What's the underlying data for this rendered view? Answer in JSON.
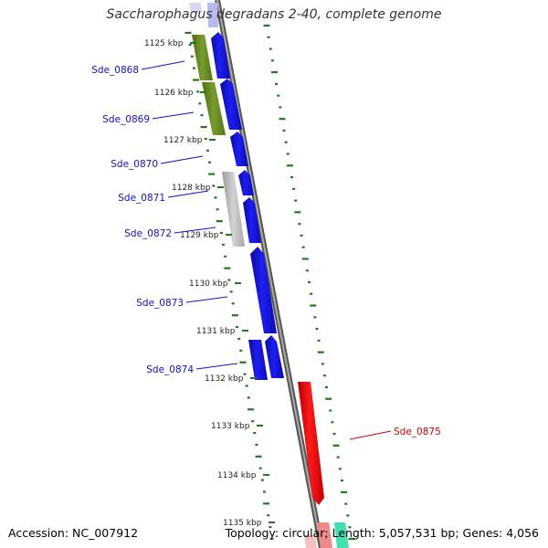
{
  "title": "Saccharophagus degradans 2-40, complete genome",
  "footer": {
    "accession": "Accession: NC_007912",
    "summary": "Topology: circular; Length: 5,057,531 bp; Genes: 4,056"
  },
  "ruler": {
    "labels": [
      "1125 kbp",
      "1126 kbp",
      "1127 kbp",
      "1128 kbp",
      "1129 kbp",
      "1130 kbp",
      "1131 kbp",
      "1132 kbp",
      "1133 kbp",
      "1134 kbp",
      "1135 kbp"
    ]
  },
  "colors": {
    "backbone": "#888888",
    "forward_cds": "#1414e6",
    "reverse_cds": "#ee1111",
    "label_blue": "#1010c8",
    "label_red": "#cc0000",
    "olive_gene": "#6b8e23",
    "gray_gene": "#b8b8b8",
    "tick_green": "#1f7a1f"
  },
  "genes": [
    {
      "label": "Sde_0868",
      "strand": "+",
      "color_key": "label_blue"
    },
    {
      "label": "Sde_0869",
      "strand": "+",
      "color_key": "label_blue"
    },
    {
      "label": "Sde_0870",
      "strand": "+",
      "color_key": "label_blue"
    },
    {
      "label": "Sde_0871",
      "strand": "+",
      "color_key": "label_blue"
    },
    {
      "label": "Sde_0872",
      "strand": "+",
      "color_key": "label_blue"
    },
    {
      "label": "Sde_0873",
      "strand": "+",
      "color_key": "label_blue"
    },
    {
      "label": "Sde_0874",
      "strand": "+",
      "color_key": "label_blue"
    },
    {
      "label": "Sde_0875",
      "strand": "-",
      "color_key": "label_red"
    }
  ]
}
